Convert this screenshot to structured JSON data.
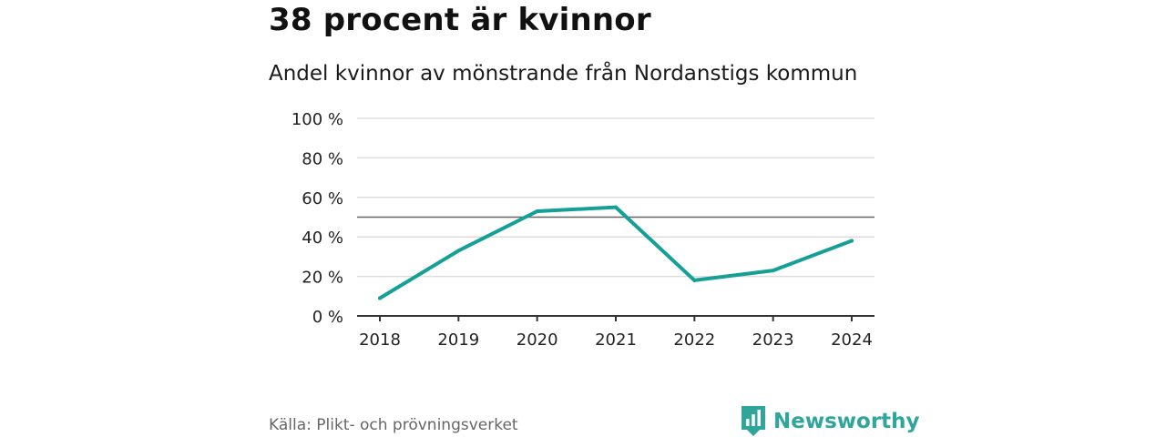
{
  "header": {
    "title": "38 procent är kvinnor",
    "subtitle": "Andel kvinnor av mönstrande från Nordanstigs kommun"
  },
  "footer": {
    "source": "Källa: Plikt- och prövningsverket",
    "brand": "Newsworthy"
  },
  "colors": {
    "line": "#14a097",
    "grid": "#dddddd",
    "reference": "#666666",
    "axis": "#333333",
    "brand": "#2fa59b"
  },
  "icons": {
    "brand_logo": "newsworthy-logo-icon"
  },
  "chart_data": {
    "type": "line",
    "title": "38 procent är kvinnor",
    "subtitle": "Andel kvinnor av mönstrande från Nordanstigs kommun",
    "xlabel": "",
    "ylabel": "",
    "categories": [
      "2018",
      "2019",
      "2020",
      "2021",
      "2022",
      "2023",
      "2024"
    ],
    "series": [
      {
        "name": "Andel kvinnor",
        "values": [
          9,
          33,
          53,
          55,
          18,
          23,
          38
        ]
      }
    ],
    "ylim": [
      0,
      100
    ],
    "yticks": [
      0,
      20,
      40,
      60,
      80,
      100
    ],
    "ytick_labels": [
      "0 %",
      "20 %",
      "40 %",
      "60 %",
      "80 %",
      "100 %"
    ],
    "reference_line": 50,
    "grid": true,
    "legend": "none"
  }
}
